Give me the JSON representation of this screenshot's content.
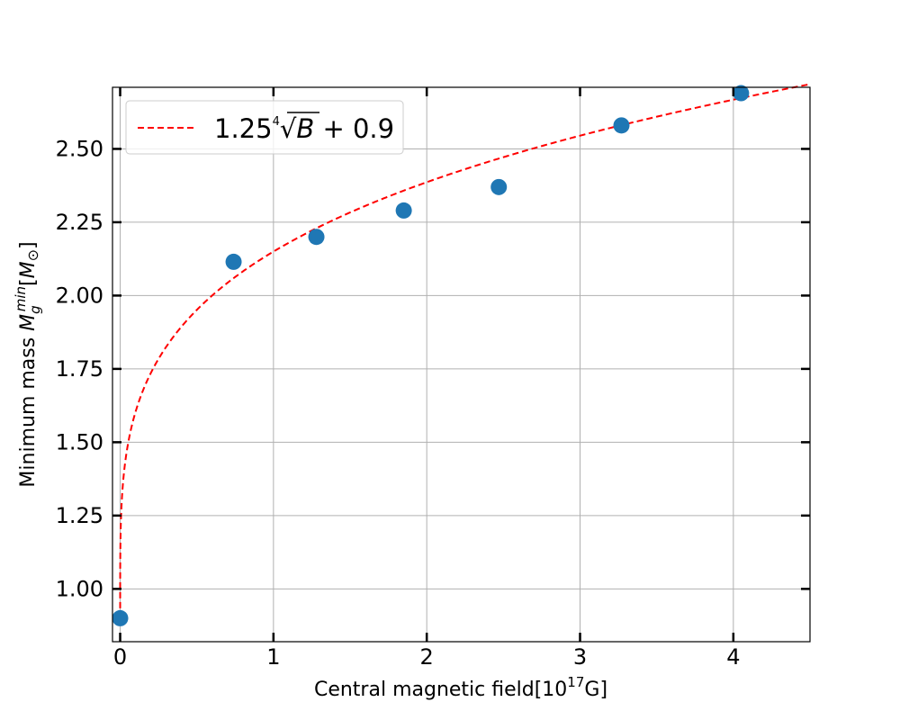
{
  "chart_data": {
    "type": "scatter",
    "xlabel": "Central magnetic field[10^17G]",
    "ylabel": "Minimum mass M_g^min[M_☉]",
    "xlim": [
      -0.05,
      4.5
    ],
    "ylim": [
      0.82,
      2.71
    ],
    "xticks": [
      0,
      1,
      2,
      3,
      4
    ],
    "xtick_labels": [
      "0",
      "1",
      "2",
      "3",
      "4"
    ],
    "yticks": [
      1.0,
      1.25,
      1.5,
      1.75,
      2.0,
      2.25,
      2.5
    ],
    "ytick_labels": [
      "1.00",
      "1.25",
      "1.50",
      "1.75",
      "2.00",
      "2.25",
      "2.50"
    ],
    "grid": true,
    "legend_position": "top-left",
    "series": [
      {
        "kind": "points",
        "color": "#1f77b4",
        "x": [
          0.0,
          0.74,
          1.28,
          1.85,
          2.47,
          3.27,
          4.05
        ],
        "y": [
          0.9,
          2.115,
          2.2,
          2.29,
          2.37,
          2.58,
          2.69
        ]
      },
      {
        "kind": "fit-line",
        "name": "1.25∜B + 0.9",
        "color": "#ff0000",
        "style": "dashed",
        "formula": "1.25 * B^(1/4) + 0.9",
        "x_range": [
          0,
          4.5
        ]
      }
    ]
  }
}
